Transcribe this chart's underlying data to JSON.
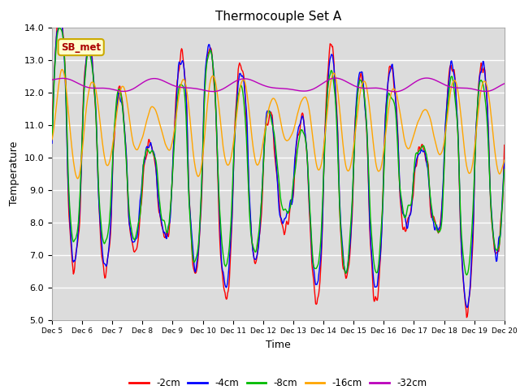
{
  "title": "Thermocouple Set A",
  "xlabel": "Time",
  "ylabel": "Temperature",
  "ylim": [
    5.0,
    14.0
  ],
  "yticks": [
    5.0,
    6.0,
    7.0,
    8.0,
    9.0,
    10.0,
    11.0,
    12.0,
    13.0,
    14.0
  ],
  "x_labels": [
    "Dec 5",
    "Dec 6",
    "Dec 7",
    "Dec 8",
    "Dec 9",
    "Dec 10",
    "Dec 11",
    "Dec 12",
    "Dec 13",
    "Dec 14",
    "Dec 15",
    "Dec 16",
    "Dec 17",
    "Dec 18",
    "Dec 19",
    "Dec 20"
  ],
  "n_points": 720,
  "colors": {
    "-2cm": "#ff0000",
    "-4cm": "#0000ff",
    "-8cm": "#00bb00",
    "-16cm": "#ffa500",
    "-32cm": "#bb00bb"
  },
  "legend_labels": [
    "-2cm",
    "-4cm",
    "-8cm",
    "-16cm",
    "-32cm"
  ],
  "annotation_text": "SB_met",
  "annotation_bg": "#ffffcc",
  "annotation_border": "#ccaa00",
  "annotation_text_color": "#aa0000",
  "plot_bg": "#dcdcdc"
}
